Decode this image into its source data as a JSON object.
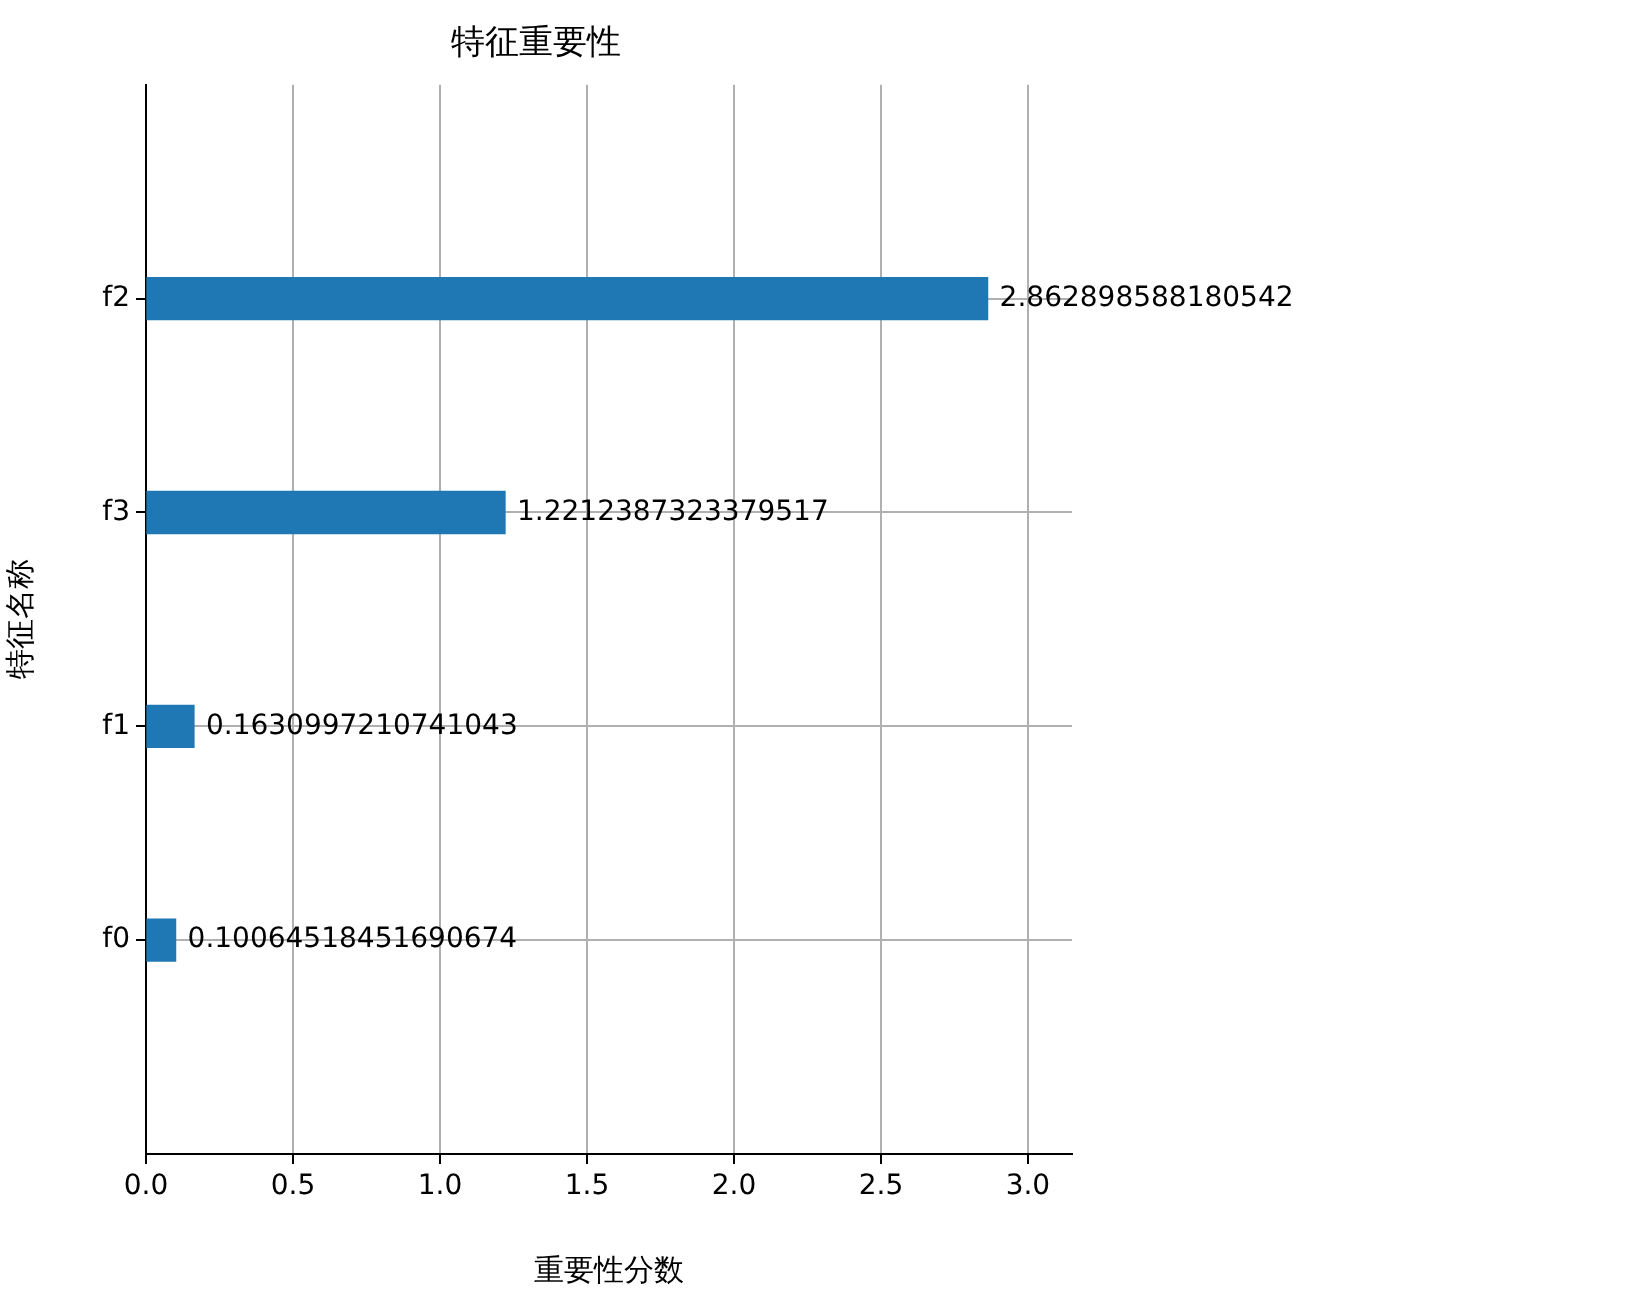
{
  "chart_data": {
    "type": "bar",
    "orientation": "horizontal",
    "title": "特征重要性",
    "xlabel": "重要性分数",
    "ylabel": "特征名称",
    "categories": [
      "f2",
      "f3",
      "f1",
      "f0"
    ],
    "values": [
      2.862898588180542,
      1.2212387323379517,
      0.1630997210741043,
      0.10064518451690674
    ],
    "color": "#1f77b4",
    "xlim": [
      0,
      3.15
    ],
    "xticks": [
      {
        "value": 0,
        "label": "0.0"
      },
      {
        "value": 0.5,
        "label": "0.5"
      },
      {
        "value": 1,
        "label": "1.0"
      },
      {
        "value": 1.5,
        "label": "1.5"
      },
      {
        "value": 2,
        "label": "2.0"
      },
      {
        "value": 2.5,
        "label": "2.5"
      },
      {
        "value": 3,
        "label": "3.0"
      }
    ],
    "grid": true,
    "data_labels": true,
    "legend": false
  }
}
